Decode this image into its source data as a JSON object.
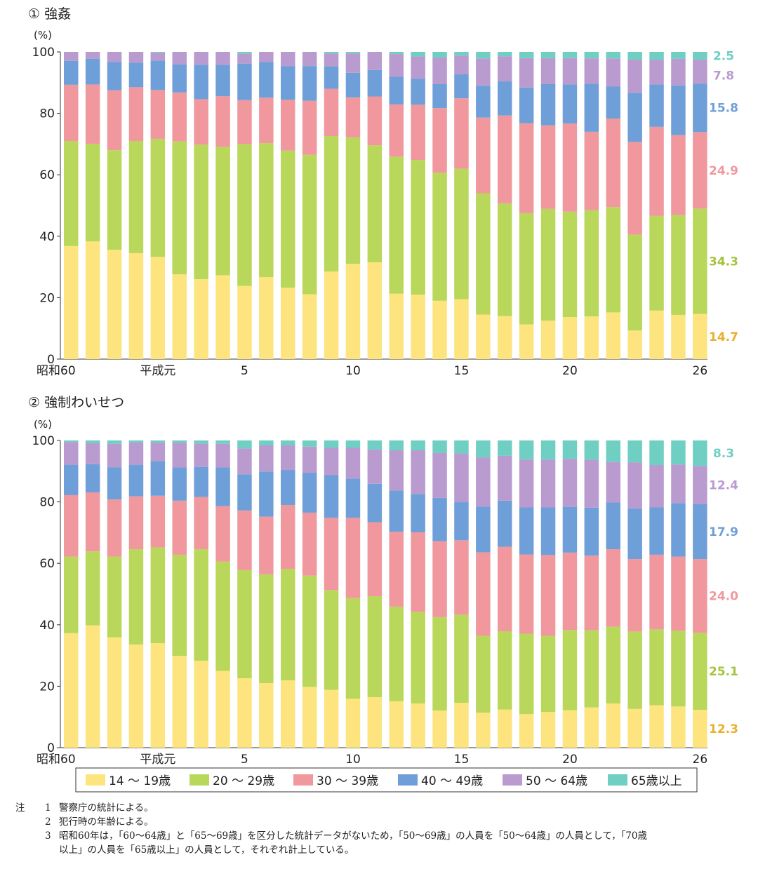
{
  "colors": {
    "age_14_19": "#fde47f",
    "age_20_29": "#b9d75a",
    "age_30_39": "#f0989d",
    "age_40_49": "#6f9fd8",
    "age_50_64": "#b99bd0",
    "age_65_plus": "#6fcfc3"
  },
  "chart_data": [
    {
      "type": "bar",
      "stacked": true,
      "title": "① 強姦",
      "ylabel": "(%)",
      "ylim": [
        0,
        100
      ],
      "yticks": [
        0,
        20,
        40,
        60,
        80,
        100
      ],
      "x_tick_labels": [
        {
          "index": 0,
          "label": "昭和60"
        },
        {
          "index": 4,
          "label": "平成元"
        },
        {
          "index": 8,
          "label": "5"
        },
        {
          "index": 13,
          "label": "10"
        },
        {
          "index": 18,
          "label": "15"
        },
        {
          "index": 23,
          "label": "20"
        },
        {
          "index": 29,
          "label": "26"
        }
      ],
      "categories": [
        "昭和60",
        "61",
        "62",
        "63",
        "平成元",
        "2",
        "3",
        "4",
        "5",
        "6",
        "7",
        "8",
        "9",
        "10",
        "11",
        "12",
        "13",
        "14",
        "15",
        "16",
        "17",
        "18",
        "19",
        "20",
        "21",
        "22",
        "23",
        "24",
        "25",
        "26"
      ],
      "series": [
        {
          "name": "14～19歳",
          "color_key": "age_14_19",
          "values": [
            36.8,
            38.3,
            35.6,
            34.5,
            33.3,
            27.6,
            26.0,
            27.3,
            23.8,
            26.7,
            23.2,
            21.1,
            28.5,
            31.0,
            31.5,
            21.3,
            21.0,
            19.0,
            19.5,
            14.5,
            14.0,
            11.3,
            12.5,
            13.7,
            13.9,
            15.2,
            9.3,
            15.8,
            14.4,
            14.7
          ]
        },
        {
          "name": "20～29歳",
          "color_key": "age_20_29",
          "values": [
            34.2,
            31.8,
            32.4,
            36.5,
            38.4,
            43.3,
            43.8,
            41.8,
            46.2,
            43.6,
            44.7,
            45.4,
            44.1,
            41.2,
            38.1,
            44.6,
            43.8,
            41.7,
            42.5,
            39.5,
            36.7,
            36.2,
            36.4,
            34.3,
            34.6,
            34.3,
            31.2,
            30.8,
            32.5,
            34.3
          ]
        },
        {
          "name": "30～39歳",
          "color_key": "age_30_39",
          "values": [
            18.3,
            19.3,
            19.5,
            17.5,
            15.9,
            15.9,
            14.8,
            16.5,
            14.3,
            14.8,
            16.5,
            17.6,
            15.4,
            13.0,
            15.9,
            17.0,
            18.0,
            21.0,
            22.9,
            24.6,
            28.6,
            29.3,
            27.2,
            28.7,
            25.5,
            28.8,
            30.2,
            29.0,
            26.0,
            24.9
          ]
        },
        {
          "name": "40～49歳",
          "color_key": "age_40_49",
          "values": [
            7.8,
            8.4,
            9.2,
            8.0,
            9.6,
            9.1,
            11.2,
            10.2,
            11.9,
            11.6,
            11.0,
            11.3,
            7.3,
            8.0,
            8.6,
            9.0,
            8.5,
            7.8,
            7.8,
            10.4,
            11.1,
            11.6,
            13.4,
            12.7,
            15.6,
            10.4,
            16.0,
            13.8,
            16.2,
            15.8
          ]
        },
        {
          "name": "50～64歳",
          "color_key": "age_50_64",
          "values": [
            2.9,
            2.2,
            3.3,
            3.5,
            2.6,
            4.1,
            4.2,
            4.2,
            3.2,
            3.3,
            4.6,
            4.6,
            4.2,
            6.3,
            5.9,
            7.4,
            7.2,
            8.7,
            6.1,
            8.9,
            8.2,
            9.6,
            8.5,
            8.6,
            8.3,
            9.2,
            10.8,
            8.1,
            8.7,
            7.8
          ]
        },
        {
          "name": "65歳以上",
          "color_key": "age_65_plus",
          "values": [
            0.0,
            0.0,
            0.0,
            0.0,
            0.2,
            0.0,
            0.0,
            0.0,
            0.6,
            0.0,
            0.0,
            0.0,
            0.5,
            0.5,
            0.0,
            0.7,
            1.5,
            1.8,
            1.2,
            2.1,
            1.4,
            2.0,
            2.0,
            2.0,
            2.1,
            2.1,
            2.5,
            2.5,
            2.2,
            2.5
          ]
        }
      ],
      "end_labels": [
        "14.7",
        "34.3",
        "24.9",
        "15.8",
        "7.8",
        "2.5"
      ]
    },
    {
      "type": "bar",
      "stacked": true,
      "title": "② 強制わいせつ",
      "ylabel": "(%)",
      "ylim": [
        0,
        100
      ],
      "yticks": [
        0,
        20,
        40,
        60,
        80,
        100
      ],
      "x_tick_labels": [
        {
          "index": 0,
          "label": "昭和60"
        },
        {
          "index": 4,
          "label": "平成元"
        },
        {
          "index": 8,
          "label": "5"
        },
        {
          "index": 13,
          "label": "10"
        },
        {
          "index": 18,
          "label": "15"
        },
        {
          "index": 23,
          "label": "20"
        },
        {
          "index": 29,
          "label": "26"
        }
      ],
      "categories": [
        "昭和60",
        "61",
        "62",
        "63",
        "平成元",
        "2",
        "3",
        "4",
        "5",
        "6",
        "7",
        "8",
        "9",
        "10",
        "11",
        "12",
        "13",
        "14",
        "15",
        "16",
        "17",
        "18",
        "19",
        "20",
        "21",
        "22",
        "23",
        "24",
        "25",
        "26"
      ],
      "series": [
        {
          "name": "14～19歳",
          "color_key": "age_14_19",
          "values": [
            37.3,
            39.8,
            35.9,
            33.6,
            34.0,
            29.9,
            28.3,
            25.0,
            22.6,
            21.0,
            21.9,
            19.8,
            18.8,
            15.9,
            16.4,
            15.1,
            14.4,
            12.1,
            14.6,
            11.4,
            12.4,
            10.9,
            11.6,
            12.2,
            13.1,
            14.4,
            12.6,
            13.8,
            13.4,
            12.3
          ]
        },
        {
          "name": "20～29歳",
          "color_key": "age_20_29",
          "values": [
            24.9,
            24.1,
            26.3,
            31.0,
            31.2,
            32.9,
            36.3,
            35.6,
            35.2,
            35.4,
            36.3,
            36.2,
            32.5,
            32.8,
            32.9,
            30.8,
            29.8,
            30.4,
            28.7,
            25.0,
            25.5,
            26.2,
            24.8,
            26.1,
            25.1,
            25.0,
            25.2,
            24.7,
            24.7,
            25.1
          ]
        },
        {
          "name": "30～39歳",
          "color_key": "age_30_39",
          "values": [
            20.0,
            19.2,
            18.6,
            17.2,
            16.8,
            17.6,
            17.0,
            18.0,
            19.4,
            18.8,
            20.8,
            20.5,
            23.5,
            26.1,
            24.1,
            24.4,
            25.9,
            24.7,
            24.2,
            27.2,
            27.5,
            25.8,
            26.3,
            25.2,
            24.3,
            25.2,
            23.6,
            24.3,
            24.1,
            24.0
          ]
        },
        {
          "name": "40～49歳",
          "color_key": "age_40_49",
          "values": [
            9.9,
            9.2,
            10.5,
            10.3,
            11.3,
            10.8,
            9.8,
            12.6,
            11.8,
            14.7,
            11.4,
            13.0,
            13.9,
            12.8,
            12.5,
            13.4,
            12.5,
            14.1,
            12.4,
            14.9,
            15.0,
            15.3,
            15.5,
            14.9,
            15.6,
            15.2,
            16.5,
            15.4,
            17.4,
            17.9
          ]
        },
        {
          "name": "50～64歳",
          "color_key": "age_50_64",
          "values": [
            7.4,
            6.8,
            7.6,
            7.2,
            6.0,
            8.1,
            7.6,
            7.7,
            8.4,
            8.5,
            8.0,
            8.5,
            8.9,
            10.0,
            11.1,
            13.1,
            14.2,
            14.6,
            15.9,
            16.0,
            14.6,
            15.6,
            15.6,
            15.6,
            15.6,
            13.2,
            15.0,
            13.8,
            12.6,
            12.4
          ]
        },
        {
          "name": "65歳以上",
          "color_key": "age_65_plus",
          "values": [
            0.5,
            0.9,
            1.1,
            0.7,
            0.7,
            0.7,
            1.0,
            1.1,
            2.6,
            1.6,
            1.6,
            2.0,
            2.4,
            2.4,
            3.0,
            3.2,
            3.2,
            4.1,
            4.2,
            5.5,
            5.0,
            6.2,
            6.2,
            6.0,
            6.3,
            7.0,
            7.1,
            8.0,
            7.8,
            8.3
          ]
        }
      ],
      "end_labels": [
        "12.3",
        "25.1",
        "24.0",
        "17.9",
        "12.4",
        "8.3"
      ]
    }
  ],
  "legend": {
    "items": [
      {
        "label": "14 ～ 19歳",
        "color_key": "age_14_19"
      },
      {
        "label": "20 ～ 29歳",
        "color_key": "age_20_29"
      },
      {
        "label": "30 ～ 39歳",
        "color_key": "age_30_39"
      },
      {
        "label": "40 ～ 49歳",
        "color_key": "age_40_49"
      },
      {
        "label": "50 ～ 64歳",
        "color_key": "age_50_64"
      },
      {
        "label": "65歳以上",
        "color_key": "age_65_plus"
      }
    ]
  },
  "notes": {
    "head": "注",
    "items": [
      {
        "num": "1",
        "text": "警察庁の統計による。"
      },
      {
        "num": "2",
        "text": "犯行時の年齢による。"
      },
      {
        "num": "3",
        "text": "昭和60年は，「60～64歳」と「65～69歳」を区分した統計データがないため，「50～69歳」の人員を「50～64歳」の人員として，「70歳",
        "continuation": "以上」の人員を「65歳以上」の人員として，それぞれ計上している。"
      }
    ]
  }
}
